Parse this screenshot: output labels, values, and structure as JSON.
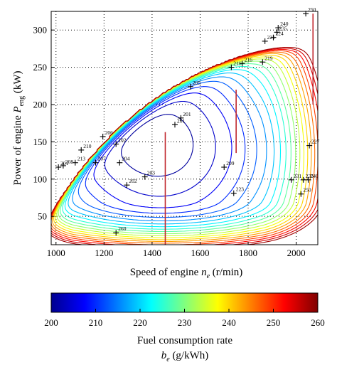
{
  "chart_data": {
    "type": "contour",
    "xlabel_main": "Speed of engine ",
    "xlabel_var": "n",
    "xlabel_sub": "e",
    "xlabel_unit": " (r/min)",
    "ylabel_main": "Power of engine ",
    "ylabel_var": "P",
    "ylabel_sub": "eng",
    "ylabel_unit": " (kW)",
    "xlim": [
      980,
      2090
    ],
    "ylim": [
      12,
      325
    ],
    "x_ticks": [
      1000,
      1200,
      1400,
      1600,
      1800,
      2000
    ],
    "y_ticks": [
      50,
      100,
      150,
      200,
      250,
      300
    ],
    "grid": "dotted",
    "colormap": {
      "min": 200,
      "max": 260,
      "ticks": [
        200,
        210,
        220,
        230,
        240,
        250,
        260
      ],
      "stops": [
        "#00008f",
        "#0000ff",
        "#007fff",
        "#00ffff",
        "#7fff7f",
        "#ffff00",
        "#ff7f00",
        "#ff0000",
        "#7f0000"
      ],
      "label": "Fuel consumption rate",
      "unit_var": "b",
      "unit_sub": "e",
      "unit_text": " (g/kWh)"
    },
    "vertical_lines": [
      {
        "x": 1455,
        "y_from": 12,
        "y_to": 163,
        "color": "#c0272d"
      },
      {
        "x": 1750,
        "y_from": 135,
        "y_to": 220,
        "color": "#c0272d"
      },
      {
        "x": 2070,
        "y_from": 200,
        "y_to": 322,
        "color": "#c0272d"
      }
    ],
    "points": [
      {
        "x": 1010,
        "y": 116,
        "label": "201"
      },
      {
        "x": 1030,
        "y": 118,
        "label": "208"
      },
      {
        "x": 1080,
        "y": 122,
        "label": "213"
      },
      {
        "x": 1105,
        "y": 139,
        "label": "210"
      },
      {
        "x": 1165,
        "y": 122,
        "label": "207"
      },
      {
        "x": 1195,
        "y": 157,
        "label": "206"
      },
      {
        "x": 1250,
        "y": 147,
        "label": "202"
      },
      {
        "x": 1265,
        "y": 122,
        "label": "204"
      },
      {
        "x": 1295,
        "y": 92,
        "label": "202"
      },
      {
        "x": 1370,
        "y": 103,
        "label": "203"
      },
      {
        "x": 1495,
        "y": 173,
        "label": "201"
      },
      {
        "x": 1520,
        "y": 182,
        "label": "201"
      },
      {
        "x": 1560,
        "y": 224,
        "label": "205"
      },
      {
        "x": 1700,
        "y": 116,
        "label": "209"
      },
      {
        "x": 1730,
        "y": 250,
        "label": "211"
      },
      {
        "x": 1775,
        "y": 255,
        "label": "216"
      },
      {
        "x": 1860,
        "y": 257,
        "label": "219"
      },
      {
        "x": 1870,
        "y": 285,
        "label": "221"
      },
      {
        "x": 1905,
        "y": 290,
        "label": "224"
      },
      {
        "x": 1920,
        "y": 297,
        "label": "235"
      },
      {
        "x": 1925,
        "y": 303,
        "label": "240"
      },
      {
        "x": 2040,
        "y": 322,
        "label": "250"
      },
      {
        "x": 2055,
        "y": 145,
        "label": "227"
      },
      {
        "x": 1740,
        "y": 81,
        "label": "223"
      },
      {
        "x": 1980,
        "y": 99,
        "label": "231"
      },
      {
        "x": 2020,
        "y": 80,
        "label": "250"
      },
      {
        "x": 2030,
        "y": 99,
        "label": "235"
      },
      {
        "x": 2050,
        "y": 99,
        "label": "240"
      },
      {
        "x": 1250,
        "y": 28,
        "label": "260"
      }
    ]
  }
}
